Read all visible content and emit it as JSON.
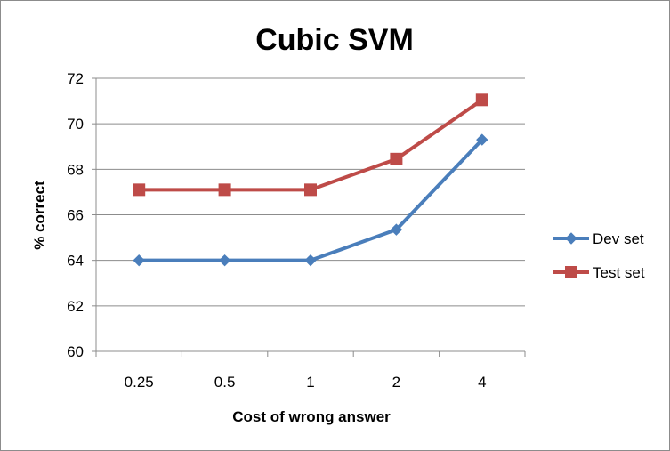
{
  "chart_data": {
    "type": "line",
    "title": "Cubic SVM",
    "xlabel": "Cost of wrong answer",
    "ylabel": "% correct",
    "categories": [
      "0.25",
      "0.5",
      "1",
      "2",
      "4"
    ],
    "ylim": [
      60,
      72
    ],
    "yticks": [
      60,
      62,
      64,
      66,
      68,
      70,
      72
    ],
    "grid": true,
    "legend_position": "right",
    "series": [
      {
        "name": "Dev set",
        "values": [
          64.0,
          64.0,
          64.0,
          65.35,
          69.3
        ],
        "color": "#4a7ebb",
        "marker": "diamond"
      },
      {
        "name": "Test set",
        "values": [
          67.1,
          67.1,
          67.1,
          68.45,
          71.05
        ],
        "color": "#be4b48",
        "marker": "square"
      }
    ]
  }
}
